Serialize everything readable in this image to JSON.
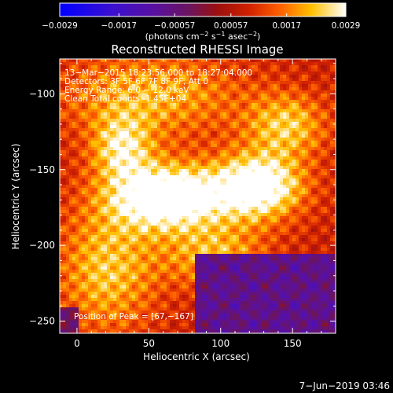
{
  "chart_data": {
    "type": "heatmap",
    "title": "Reconstructed RHESSI Image",
    "xlabel": "Heliocentric X (arcsec)",
    "ylabel": "Heliocentric Y (arcsec)",
    "xlim": [
      -12,
      180
    ],
    "ylim": [
      -258,
      -77
    ],
    "x_ticks": [
      0,
      50,
      100,
      150
    ],
    "x_tick_labels": [
      "0",
      "50",
      "100",
      "150"
    ],
    "y_ticks": [
      -100,
      -150,
      -200,
      -250
    ],
    "y_tick_labels": [
      "−100",
      "−150",
      "−200",
      "−250"
    ],
    "grid": false,
    "colorbar": {
      "location": "top",
      "min": -0.0029,
      "max": 0.0029,
      "ticks": [
        -0.0029,
        -0.0017,
        -0.00057,
        0.00057,
        0.0017,
        0.0029
      ],
      "tick_labels": [
        "−0.0029",
        "−0.0017",
        "−0.00057",
        "0.00057",
        "0.0017",
        "0.0029"
      ],
      "unit_parts": [
        "(photons cm",
        "−2",
        " s",
        "−1",
        " asec",
        "−2",
        ")"
      ]
    },
    "annotations": [
      "13−Mar−2015 18:23:56.000 to 18:27:04.000",
      "Detectors: 3F 5F 6F 7F 8F 9F, Att 0",
      "Energy Range: 6.0 − 12.0 keV",
      "Clean    Total counts: 1.45E+04"
    ],
    "peak_text": "Position of Peak = [67,−167]",
    "peak": {
      "x": 67,
      "y": -167
    },
    "sources": [
      {
        "x": 62,
        "y": -167,
        "sx": 28,
        "sy": 15,
        "amp": 1.0
      },
      {
        "x": 125,
        "y": -160,
        "sx": 22,
        "sy": 15,
        "amp": 0.9
      },
      {
        "x": 30,
        "y": -135,
        "sx": 15,
        "sy": 15,
        "amp": 0.55
      },
      {
        "x": 145,
        "y": -120,
        "sx": 20,
        "sy": 15,
        "amp": 0.5
      },
      {
        "x": 50,
        "y": -100,
        "sx": 45,
        "sy": 20,
        "amp": 0.45
      },
      {
        "x": 20,
        "y": -215,
        "sx": 25,
        "sy": 30,
        "amp": 0.5
      },
      {
        "x": 95,
        "y": -205,
        "sx": 25,
        "sy": 15,
        "amp": 0.45
      }
    ],
    "background_level": 0.3,
    "negative_region": {
      "x_min": 80,
      "y_max": -205,
      "level": -0.25
    },
    "timestamp": "7−Jun−2019 03:46"
  }
}
